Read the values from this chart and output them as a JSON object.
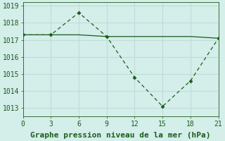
{
  "x": [
    0,
    3,
    6,
    9,
    12,
    15,
    18,
    21
  ],
  "y_main": [
    1017.3,
    1017.3,
    1018.6,
    1017.2,
    1014.8,
    1013.1,
    1014.6,
    1017.1
  ],
  "y_flat": [
    1017.3,
    1017.3,
    1017.3,
    1017.2,
    1017.2,
    1017.2,
    1017.2,
    1017.1
  ],
  "line_color": "#1a5c1a",
  "bg_color": "#d4eeea",
  "grid_color": "#c0dcd8",
  "xlabel": "Graphe pression niveau de la mer (hPa)",
  "xlim": [
    0,
    21
  ],
  "ylim": [
    1012.5,
    1019.2
  ],
  "yticks": [
    1013,
    1014,
    1015,
    1016,
    1017,
    1018,
    1019
  ],
  "xticks": [
    0,
    3,
    6,
    9,
    12,
    15,
    18,
    21
  ],
  "xlabel_fontsize": 8,
  "tick_fontsize": 7
}
